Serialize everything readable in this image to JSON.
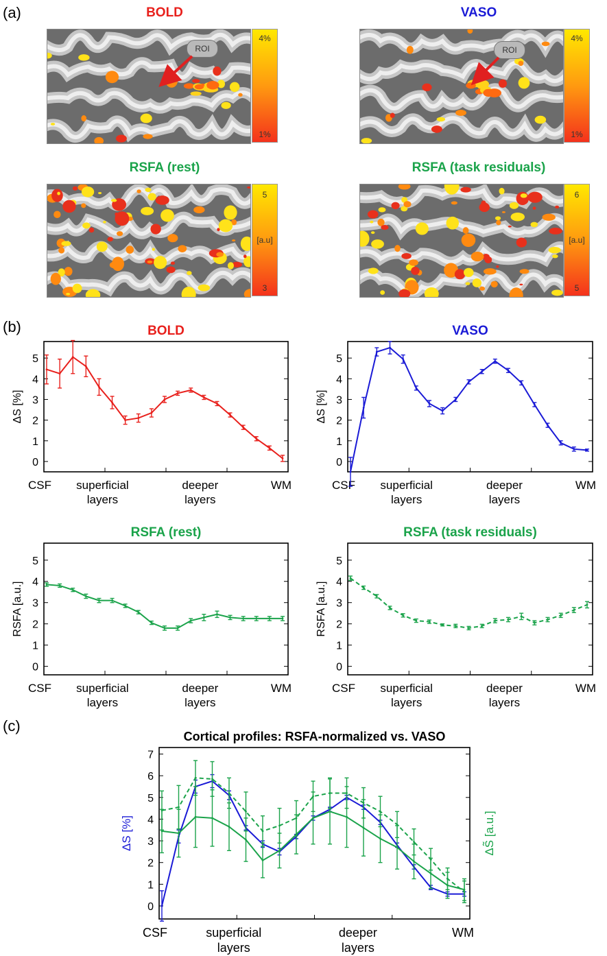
{
  "panel_labels": {
    "a": "(a)",
    "b": "(b)",
    "c": "(c)"
  },
  "colors": {
    "bold": "#e8201c",
    "vaso": "#1a1ad6",
    "rsfa": "#1aa34a",
    "black": "#000000"
  },
  "maps": [
    {
      "title": "BOLD",
      "color": "#e8201c",
      "roi": "ROI",
      "scale_top": "4%",
      "scale_mid": "",
      "scale_bottom": "1%"
    },
    {
      "title": "VASO",
      "color": "#1a1ad6",
      "roi": "ROI",
      "scale_top": "4%",
      "scale_mid": "",
      "scale_bottom": "1%"
    },
    {
      "title": "RSFA (rest)",
      "color": "#1aa34a",
      "roi": "",
      "scale_top": "5",
      "scale_mid": "[a.u]",
      "scale_bottom": "3"
    },
    {
      "title": "RSFA (task residuals)",
      "color": "#1aa34a",
      "roi": "",
      "scale_top": "6",
      "scale_mid": "[a.u]",
      "scale_bottom": "5"
    }
  ],
  "xticks": [
    "CSF",
    "superficial",
    "layers",
    "deeper",
    "layers",
    "WM"
  ],
  "chart_data": [
    {
      "type": "line",
      "title": "BOLD",
      "ylabel": "ΔS [%]",
      "ylim": [
        -0.5,
        5.8
      ],
      "yticks": [
        "0",
        "1",
        "2",
        "3",
        "4",
        "5"
      ],
      "grid": false,
      "series": [
        {
          "color": "#e8201c",
          "dash": false,
          "values": [
            4.45,
            4.25,
            5.05,
            4.6,
            3.6,
            2.85,
            2.0,
            2.1,
            2.35,
            3.0,
            3.3,
            3.45,
            3.1,
            2.8,
            2.25,
            1.65,
            1.1,
            0.65,
            0.15
          ],
          "err": [
            0.7,
            0.7,
            0.8,
            0.5,
            0.4,
            0.3,
            0.2,
            0.2,
            0.2,
            0.15,
            0.1,
            0.1,
            0.1,
            0.1,
            0.1,
            0.1,
            0.1,
            0.1,
            0.15
          ]
        }
      ]
    },
    {
      "type": "line",
      "title": "VASO",
      "ylabel": "ΔS [%]",
      "ylim": [
        -0.5,
        5.8
      ],
      "yticks": [
        "0",
        "1",
        "2",
        "3",
        "4",
        "5"
      ],
      "grid": false,
      "series": [
        {
          "color": "#1a1ad6",
          "dash": false,
          "values": [
            -0.5,
            2.6,
            5.3,
            5.5,
            4.95,
            3.55,
            2.8,
            2.45,
            3.0,
            3.85,
            4.35,
            4.85,
            4.4,
            3.8,
            2.75,
            1.75,
            0.9,
            0.6,
            0.55
          ],
          "err": [
            0.7,
            0.5,
            0.2,
            0.3,
            0.2,
            0.1,
            0.15,
            0.15,
            0.1,
            0.1,
            0.1,
            0.1,
            0.1,
            0.1,
            0.1,
            0.1,
            0.1,
            0.1,
            0.05
          ]
        }
      ]
    },
    {
      "type": "line",
      "title": "RSFA (rest)",
      "ylabel": "RSFA [a.u.]",
      "ylim": [
        -0.4,
        5.8
      ],
      "yticks": [
        "0",
        "1",
        "2",
        "3",
        "4",
        "5"
      ],
      "grid": false,
      "series": [
        {
          "color": "#1aa34a",
          "dash": false,
          "values": [
            3.85,
            3.8,
            3.6,
            3.3,
            3.1,
            3.1,
            2.85,
            2.55,
            2.05,
            1.8,
            1.8,
            2.15,
            2.3,
            2.45,
            2.3,
            2.25,
            2.25,
            2.25,
            2.25
          ],
          "err": [
            0.08,
            0.08,
            0.08,
            0.1,
            0.1,
            0.1,
            0.08,
            0.08,
            0.08,
            0.1,
            0.1,
            0.1,
            0.15,
            0.15,
            0.1,
            0.1,
            0.1,
            0.1,
            0.1
          ]
        }
      ]
    },
    {
      "type": "line",
      "title": "RSFA (task residuals)",
      "ylabel": "RSFA [a.u.]",
      "ylim": [
        -0.4,
        5.8
      ],
      "yticks": [
        "0",
        "1",
        "2",
        "3",
        "4",
        "5"
      ],
      "grid": false,
      "series": [
        {
          "color": "#1aa34a",
          "dash": true,
          "values": [
            4.15,
            3.7,
            3.3,
            2.75,
            2.4,
            2.15,
            2.1,
            1.95,
            1.9,
            1.8,
            1.9,
            2.15,
            2.2,
            2.35,
            2.05,
            2.2,
            2.4,
            2.65,
            2.9
          ],
          "err": [
            0.1,
            0.08,
            0.08,
            0.08,
            0.08,
            0.08,
            0.08,
            0.05,
            0.08,
            0.08,
            0.08,
            0.1,
            0.1,
            0.15,
            0.1,
            0.1,
            0.1,
            0.12,
            0.15
          ]
        }
      ]
    },
    {
      "type": "line",
      "title": "Cortical profiles: RSFA-normalized vs. VASO",
      "ylabel": "ΔS [%]",
      "ylabel_right": "ΔS̃ [a.u.]",
      "ylim": [
        -0.6,
        7.3
      ],
      "yticks": [
        "0",
        "1",
        "2",
        "3",
        "4",
        "5",
        "6",
        "7"
      ],
      "grid": false,
      "series": [
        {
          "color": "#1a1ad6",
          "dash": false,
          "values": [
            0.0,
            3.2,
            5.5,
            5.75,
            5.1,
            3.6,
            2.85,
            2.5,
            3.2,
            4.05,
            4.45,
            5.0,
            4.55,
            3.85,
            2.8,
            1.8,
            0.85,
            0.55,
            0.55
          ],
          "err": [
            0.7,
            0.3,
            0.3,
            0.3,
            0.2,
            0.1,
            0.15,
            0.15,
            0.1,
            0.1,
            0.1,
            0.1,
            0.1,
            0.1,
            0.1,
            0.1,
            0.1,
            0.1,
            0.1
          ]
        },
        {
          "color": "#1aa34a",
          "dash": false,
          "values": [
            3.45,
            3.35,
            4.1,
            4.05,
            3.65,
            3.05,
            2.1,
            2.55,
            3.3,
            4.05,
            4.35,
            4.1,
            3.6,
            3.1,
            2.7,
            2.05,
            1.5,
            0.95,
            0.75
          ],
          "err": [
            1.0,
            1.1,
            1.4,
            1.3,
            1.1,
            1.0,
            0.8,
            0.8,
            0.9,
            1.2,
            1.5,
            1.4,
            1.3,
            1.1,
            1.0,
            0.8,
            0.7,
            0.6,
            0.5
          ]
        },
        {
          "color": "#1aa34a",
          "dash": true,
          "values": [
            4.4,
            4.55,
            5.9,
            5.85,
            5.2,
            4.35,
            3.45,
            3.7,
            4.05,
            5.05,
            5.2,
            5.2,
            4.75,
            4.35,
            3.75,
            2.95,
            2.15,
            1.25,
            0.65
          ],
          "err": [
            0.9,
            1.0,
            0.8,
            0.8,
            0.7,
            0.9,
            0.7,
            0.8,
            0.8,
            0.7,
            0.7,
            0.7,
            0.7,
            0.7,
            0.6,
            0.6,
            0.5,
            0.5,
            0.5
          ]
        }
      ]
    }
  ]
}
